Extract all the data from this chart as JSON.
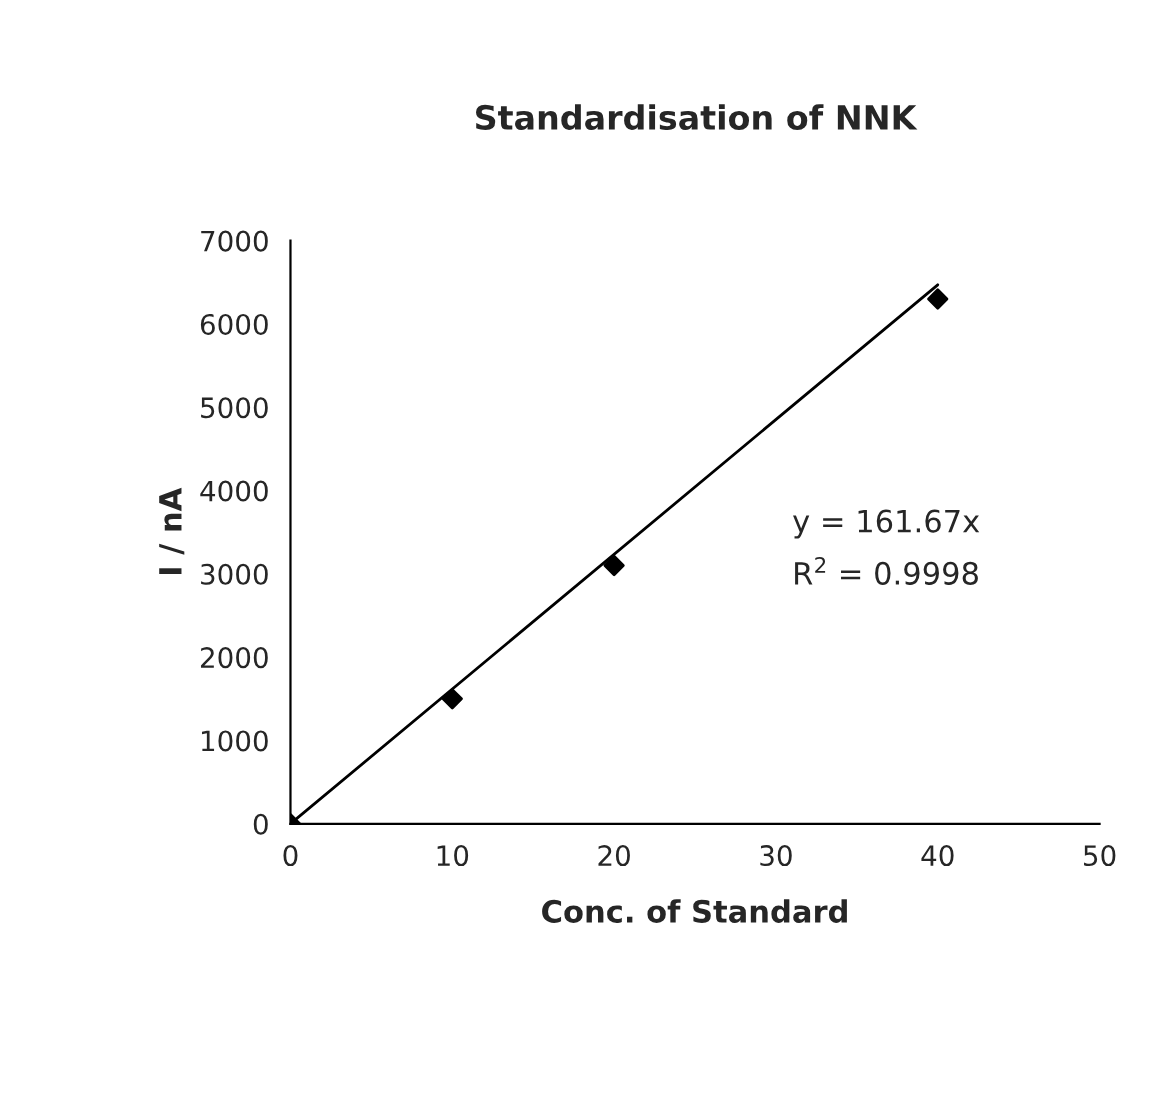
{
  "chart_data": {
    "type": "scatter",
    "title": "Standardisation of NNK",
    "xlabel": "Conc. of Standard",
    "ylabel": "I / nA",
    "series": [
      {
        "color": "#000000",
        "marker": "diamond",
        "x": [
          0,
          10,
          20,
          40
        ],
        "values": [
          0,
          1500,
          3100,
          6300
        ]
      },
      {
        "type": "line",
        "color": "#000000",
        "marker": "none",
        "line_style": "solid",
        "x": [
          0,
          40
        ],
        "values": [
          0,
          6470
        ]
      }
    ],
    "annotations": [
      "y = 161.67x",
      "R$^{2}$ = 0.9998"
    ],
    "xlim": [
      0,
      50
    ],
    "xticks": [
      0,
      10,
      20,
      30,
      40,
      50
    ],
    "ylim": [
      0,
      7000
    ],
    "yticks": [
      0,
      1000,
      2000,
      3000,
      4000,
      5000,
      6000,
      7000
    ],
    "grid": false,
    "legend": false
  }
}
